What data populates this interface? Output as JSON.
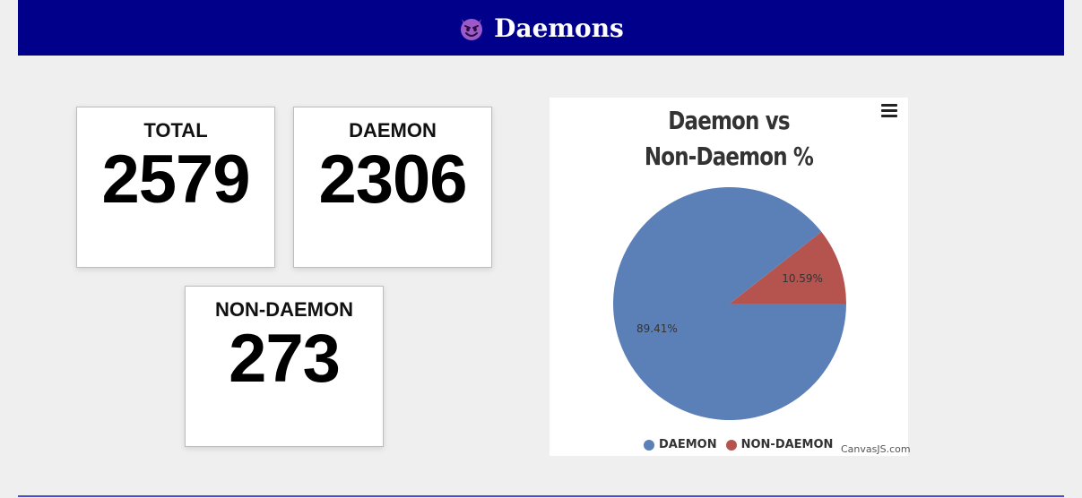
{
  "header": {
    "icon": "smiling-devil-emoji",
    "title": "Daemons",
    "background_color": "#00008b"
  },
  "cards": {
    "total": {
      "label": "TOTAL",
      "value": "2579"
    },
    "daemon": {
      "label": "DAEMON",
      "value": "2306"
    },
    "non_daemon": {
      "label": "NON-DAEMON",
      "value": "273"
    }
  },
  "chart_data": {
    "type": "pie",
    "title": "Daemon vs Non-Daemon %",
    "title_lines": [
      "Daemon vs",
      "Non-Daemon %"
    ],
    "slices": [
      {
        "name": "DAEMON",
        "value": 89.41,
        "label": "89.41%",
        "color": "#5b80b8"
      },
      {
        "name": "NON-DAEMON",
        "value": 10.59,
        "label": "10.59%",
        "color": "#b5544f"
      }
    ],
    "legend_position": "bottom-center",
    "credit": "CanvasJS.com"
  }
}
